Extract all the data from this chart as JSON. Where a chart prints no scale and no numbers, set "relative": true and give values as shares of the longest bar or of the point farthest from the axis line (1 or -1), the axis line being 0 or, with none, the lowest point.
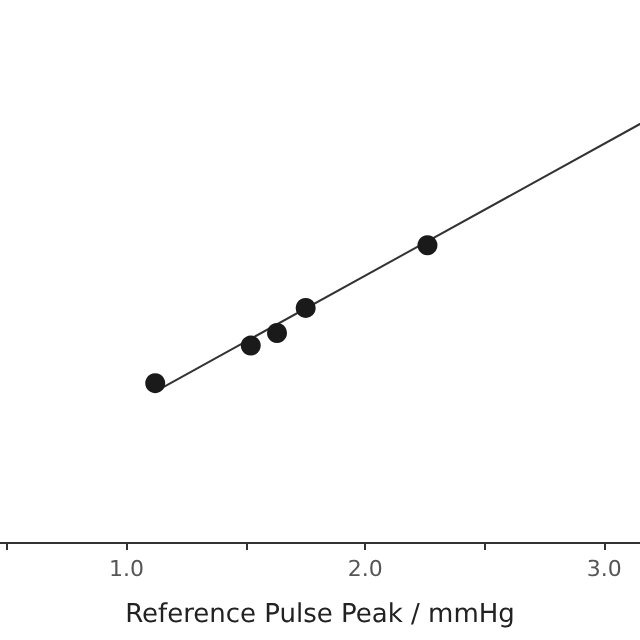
{
  "chart_data": {
    "type": "scatter",
    "xlabel": "Reference Pulse Peak / mmHg",
    "relative": true,
    "xlim": [
      0.47,
      3.15
    ],
    "xticks": [
      {
        "value": 0.5,
        "label": null
      },
      {
        "value": 1.0,
        "label": "1.0"
      },
      {
        "value": 1.5,
        "label": null
      },
      {
        "value": 2.0,
        "label": "2.0"
      },
      {
        "value": 2.5,
        "label": null
      },
      {
        "value": 3.0,
        "label": "3.0"
      }
    ],
    "tick_labels": "x",
    "grid": false,
    "series": [
      {
        "color": "#1a1a1a",
        "marker": "circle",
        "x": [
          1.12,
          1.52,
          1.63,
          1.75,
          2.26
        ],
        "values": [
          0.38,
          0.47,
          0.5,
          0.56,
          0.71
        ]
      },
      {
        "type": "line",
        "color": "#333333",
        "marker": "none",
        "line_style": "solid",
        "x": [
          1.12,
          3.15
        ],
        "values": [
          0.36,
          1.0
        ]
      }
    ]
  }
}
